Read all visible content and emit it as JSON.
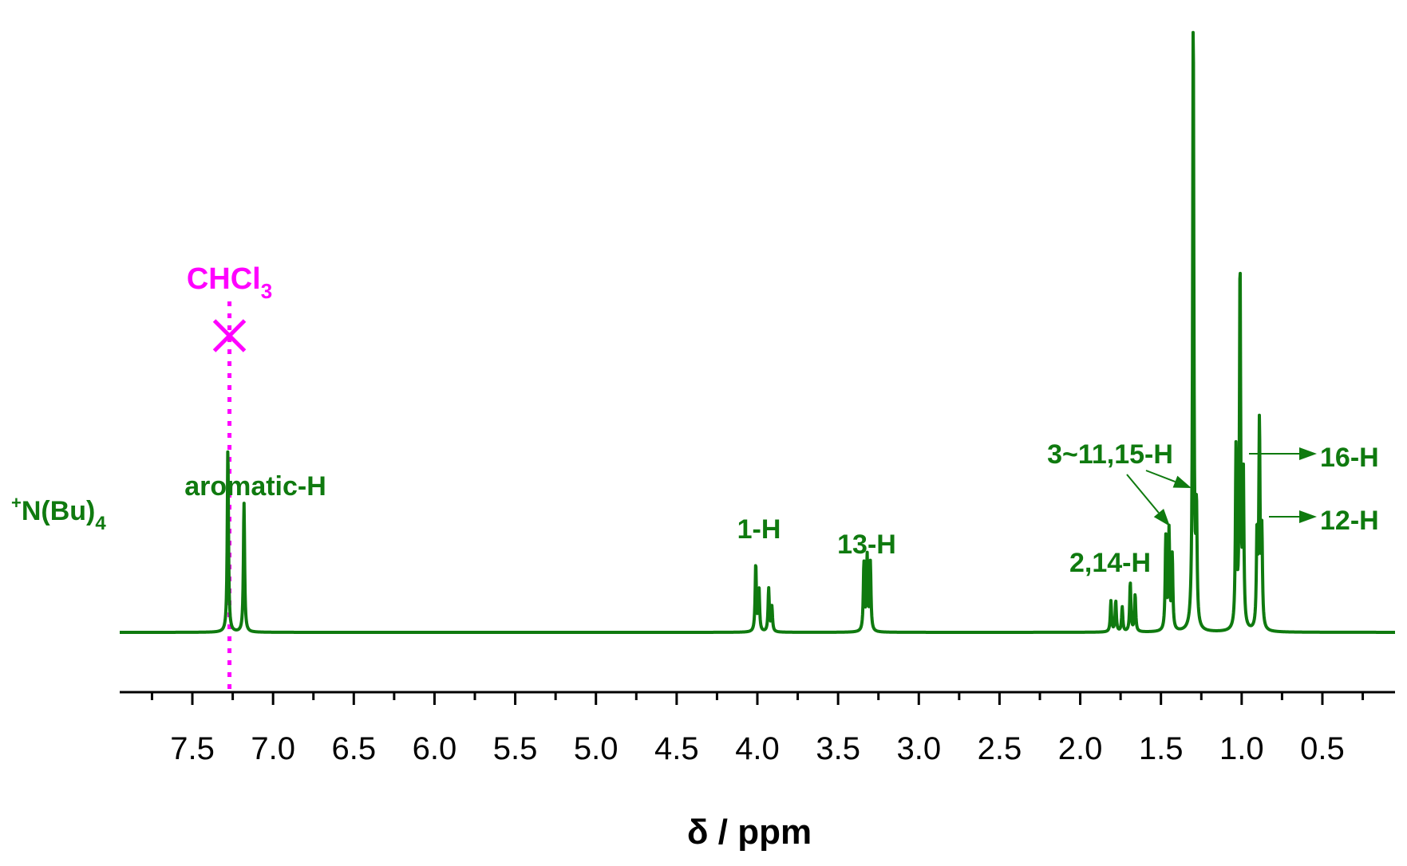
{
  "chart_data": {
    "type": "line",
    "title": "",
    "xlabel": "δ / ppm",
    "ylabel": "",
    "xlim": [
      7.95,
      0.05
    ],
    "x_reversed": true,
    "x_ticks": [
      7.5,
      7.0,
      6.5,
      6.0,
      5.5,
      5.0,
      4.5,
      4.0,
      3.5,
      3.0,
      2.5,
      2.0,
      1.5,
      1.0,
      0.5
    ],
    "x_tick_labels": [
      "7.5",
      "7.0",
      "6.5",
      "6.0",
      "5.5",
      "5.0",
      "4.5",
      "4.0",
      "3.5",
      "3.0",
      "2.5",
      "2.0",
      "1.5",
      "1.0",
      "0.5"
    ],
    "y_visible": false,
    "grid": false,
    "series": [
      {
        "color": "#0f7a0f",
        "peaks": [
          {
            "ppm": 7.28,
            "intensity": 0.3
          },
          {
            "ppm": 7.18,
            "intensity": 0.21
          },
          {
            "ppm": 4.01,
            "intensity": 0.11
          },
          {
            "ppm": 3.99,
            "intensity": 0.07
          },
          {
            "ppm": 3.93,
            "intensity": 0.07
          },
          {
            "ppm": 3.91,
            "intensity": 0.04
          },
          {
            "ppm": 3.34,
            "intensity": 0.11
          },
          {
            "ppm": 3.32,
            "intensity": 0.12
          },
          {
            "ppm": 3.3,
            "intensity": 0.11
          },
          {
            "ppm": 1.81,
            "intensity": 0.05
          },
          {
            "ppm": 1.78,
            "intensity": 0.05
          },
          {
            "ppm": 1.74,
            "intensity": 0.04
          },
          {
            "ppm": 1.69,
            "intensity": 0.08
          },
          {
            "ppm": 1.66,
            "intensity": 0.06
          },
          {
            "ppm": 1.47,
            "intensity": 0.15
          },
          {
            "ppm": 1.45,
            "intensity": 0.16
          },
          {
            "ppm": 1.43,
            "intensity": 0.12
          },
          {
            "ppm": 1.3,
            "intensity": 1.0
          },
          {
            "ppm": 1.28,
            "intensity": 0.18
          },
          {
            "ppm": 1.035,
            "intensity": 0.29
          },
          {
            "ppm": 1.01,
            "intensity": 0.59
          },
          {
            "ppm": 0.99,
            "intensity": 0.25
          },
          {
            "ppm": 0.905,
            "intensity": 0.15
          },
          {
            "ppm": 0.89,
            "intensity": 0.33
          },
          {
            "ppm": 0.875,
            "intensity": 0.15
          }
        ]
      }
    ],
    "annotations": [
      {
        "text": "aromatic-H",
        "ppm": 7.23,
        "intensity": 0.22,
        "color": "#0f7a0f"
      },
      {
        "text": "1-H",
        "ppm": 3.97,
        "intensity": 0.13,
        "color": "#0f7a0f"
      },
      {
        "text": "13-H",
        "ppm": 3.32,
        "intensity": 0.12,
        "color": "#0f7a0f"
      },
      {
        "text": "2,14-H",
        "ppm": 1.68,
        "intensity": 0.09,
        "color": "#0f7a0f"
      },
      {
        "text": "3~11,15-H",
        "ppm": 1.45,
        "intensity": 0.27,
        "color": "#0f7a0f"
      },
      {
        "text": "16-H",
        "ppm": 0.3,
        "intensity": 0.29,
        "color": "#0f7a0f"
      },
      {
        "text": "12-H",
        "ppm": 0.3,
        "intensity": 0.18,
        "color": "#0f7a0f"
      }
    ],
    "side_label": {
      "prefix": "+",
      "main": "N(Bu)",
      "subscript": "4",
      "color": "#0f7a0f"
    },
    "solvent_marker": {
      "main": "CHCl",
      "subscript": "3",
      "ppm": 7.27,
      "color": "#ff00ff",
      "style": "dotted line with cross"
    }
  }
}
